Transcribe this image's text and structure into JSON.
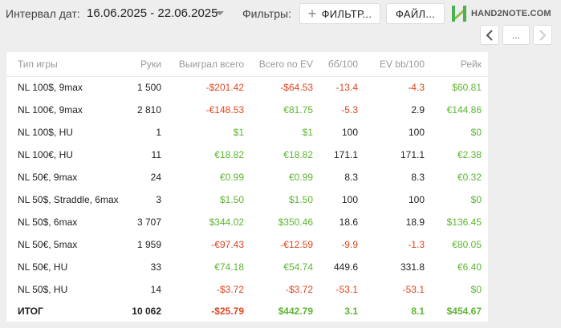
{
  "header": {
    "date_label": "Интервал дат:",
    "date_range": "16.06.2025 - 22.06.2025",
    "filters_label": "Фильтры:",
    "filters_button": "ФИЛЬТР...",
    "files_button": "ФАЙЛ...",
    "logo_text": "HAND2NOTE.COM",
    "nav_more": "..."
  },
  "colors": {
    "positive": "#5cb531",
    "negative": "#e0441f",
    "logo_green": "#4caf50"
  },
  "table": {
    "columns": [
      "Тип игры",
      "Руки",
      "Выиграл всего",
      "Всего по EV",
      "бб/100",
      "EV bb/100",
      "Рейк"
    ],
    "rows": [
      {
        "game": "NL 100$, 9max",
        "hands": "1 500",
        "won": "-$201.42",
        "ev": "-$64.53",
        "bb100": "-13.4",
        "evbb100": "-4.3",
        "rake": "$60.81"
      },
      {
        "game": "NL 100€, 9max",
        "hands": "2 810",
        "won": "-€148.53",
        "ev": "€81.75",
        "bb100": "-5.3",
        "evbb100": "2.9",
        "rake": "€144.86"
      },
      {
        "game": "NL 100$, HU",
        "hands": "1",
        "won": "$1",
        "ev": "$1",
        "bb100": "100",
        "evbb100": "100",
        "rake": "$0"
      },
      {
        "game": "NL 100€, HU",
        "hands": "11",
        "won": "€18.82",
        "ev": "€18.82",
        "bb100": "171.1",
        "evbb100": "171.1",
        "rake": "€2.38"
      },
      {
        "game": "NL 50€, 9max",
        "hands": "24",
        "won": "€0.99",
        "ev": "€0.99",
        "bb100": "8.3",
        "evbb100": "8.3",
        "rake": "€0.32"
      },
      {
        "game": "NL 50$, Straddle, 6max",
        "hands": "3",
        "won": "$1.50",
        "ev": "$1.50",
        "bb100": "100",
        "evbb100": "100",
        "rake": "$0"
      },
      {
        "game": "NL 50$, 6max",
        "hands": "3 707",
        "won": "$344.02",
        "ev": "$350.46",
        "bb100": "18.6",
        "evbb100": "18.9",
        "rake": "$136.45"
      },
      {
        "game": "NL 50€, 5max",
        "hands": "1 959",
        "won": "-€97.43",
        "ev": "-€12.59",
        "bb100": "-9.9",
        "evbb100": "-1.3",
        "rake": "€80.05"
      },
      {
        "game": "NL 50€, HU",
        "hands": "33",
        "won": "€74.18",
        "ev": "€54.74",
        "bb100": "449.6",
        "evbb100": "331.8",
        "rake": "€6.40"
      },
      {
        "game": "NL 50$, HU",
        "hands": "14",
        "won": "-$3.72",
        "ev": "-$3.72",
        "bb100": "-53.1",
        "evbb100": "-53.1",
        "rake": "$0"
      }
    ],
    "total": {
      "game": "ИТОГ",
      "hands": "10 062",
      "won": "-$25.79",
      "ev": "$442.79",
      "bb100": "3.1",
      "evbb100": "8.1",
      "rake": "$454.67"
    }
  }
}
